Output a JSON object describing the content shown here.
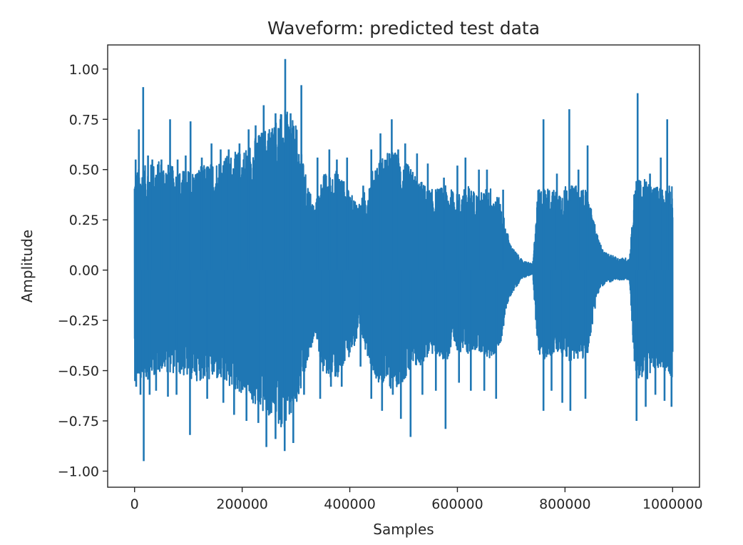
{
  "chart_data": {
    "type": "line",
    "title": "Waveform: predicted test data",
    "xlabel": "Samples",
    "ylabel": "Amplitude",
    "xlim": [
      -50000,
      1050000
    ],
    "ylim": [
      -1.08,
      1.12
    ],
    "xticks": [
      0,
      200000,
      400000,
      600000,
      800000,
      1000000
    ],
    "xtick_labels": [
      "0",
      "200000",
      "400000",
      "600000",
      "800000",
      "1000000"
    ],
    "yticks": [
      1.0,
      0.75,
      0.5,
      0.25,
      0.0,
      -0.25,
      -0.5,
      -0.75,
      -1.0
    ],
    "ytick_labels": [
      "1.00",
      "0.75",
      "0.50",
      "0.25",
      "0.00",
      "−0.25",
      "−0.50",
      "−0.75",
      "−1.00"
    ],
    "grid": false,
    "series": [
      {
        "color": "#1f77b4",
        "envelope": {
          "x": [
            0,
            20000,
            50000,
            80000,
            110000,
            150000,
            200000,
            230000,
            260000,
            280000,
            300000,
            320000,
            335000,
            350000,
            380000,
            400000,
            420000,
            450000,
            480000,
            500000,
            530000,
            550000,
            580000,
            600000,
            620000,
            640000,
            660000,
            680000,
            690000,
            700000,
            720000,
            740000,
            750000,
            760000,
            780000,
            800000,
            820000,
            840000,
            860000,
            870000,
            880000,
            900000,
            920000,
            930000,
            950000,
            970000,
            990000,
            1000000
          ],
          "upper": [
            0.5,
            0.52,
            0.55,
            0.5,
            0.5,
            0.55,
            0.6,
            0.68,
            0.75,
            0.8,
            0.72,
            0.45,
            0.32,
            0.48,
            0.5,
            0.38,
            0.34,
            0.55,
            0.6,
            0.55,
            0.45,
            0.4,
            0.42,
            0.38,
            0.42,
            0.38,
            0.42,
            0.35,
            0.22,
            0.12,
            0.05,
            0.03,
            0.4,
            0.42,
            0.4,
            0.42,
            0.42,
            0.4,
            0.18,
            0.1,
            0.08,
            0.06,
            0.06,
            0.45,
            0.45,
            0.42,
            0.42,
            0.42
          ],
          "lower": [
            -0.55,
            -0.55,
            -0.5,
            -0.52,
            -0.55,
            -0.55,
            -0.62,
            -0.7,
            -0.75,
            -0.8,
            -0.7,
            -0.5,
            -0.3,
            -0.52,
            -0.55,
            -0.42,
            -0.33,
            -0.55,
            -0.6,
            -0.55,
            -0.48,
            -0.42,
            -0.45,
            -0.4,
            -0.42,
            -0.4,
            -0.45,
            -0.38,
            -0.2,
            -0.12,
            -0.04,
            -0.02,
            -0.45,
            -0.45,
            -0.42,
            -0.45,
            -0.45,
            -0.45,
            -0.12,
            -0.08,
            -0.06,
            -0.05,
            -0.05,
            -0.55,
            -0.55,
            -0.5,
            -0.5,
            -0.55
          ]
        },
        "peaks": [
          {
            "x": 2000,
            "y": 0.55
          },
          {
            "x": 8000,
            "y": 0.7
          },
          {
            "x": 16000,
            "y": 0.91
          },
          {
            "x": 25000,
            "y": 0.57
          },
          {
            "x": 33000,
            "y": 0.55
          },
          {
            "x": 50000,
            "y": 0.55
          },
          {
            "x": 66000,
            "y": 0.75
          },
          {
            "x": 80000,
            "y": 0.55
          },
          {
            "x": 95000,
            "y": 0.57
          },
          {
            "x": 104000,
            "y": 0.74
          },
          {
            "x": 125000,
            "y": 0.56
          },
          {
            "x": 143000,
            "y": 0.63
          },
          {
            "x": 160000,
            "y": 0.6
          },
          {
            "x": 175000,
            "y": 0.6
          },
          {
            "x": 195000,
            "y": 0.63
          },
          {
            "x": 212000,
            "y": 0.7
          },
          {
            "x": 225000,
            "y": 0.72
          },
          {
            "x": 240000,
            "y": 0.82
          },
          {
            "x": 262000,
            "y": 0.78
          },
          {
            "x": 280000,
            "y": 1.05
          },
          {
            "x": 290000,
            "y": 0.78
          },
          {
            "x": 310000,
            "y": 0.92
          },
          {
            "x": 340000,
            "y": 0.56
          },
          {
            "x": 362000,
            "y": 0.6
          },
          {
            "x": 376000,
            "y": 0.55
          },
          {
            "x": 395000,
            "y": 0.56
          },
          {
            "x": 425000,
            "y": 0.42
          },
          {
            "x": 440000,
            "y": 0.6
          },
          {
            "x": 457000,
            "y": 0.68
          },
          {
            "x": 478000,
            "y": 0.75
          },
          {
            "x": 490000,
            "y": 0.6
          },
          {
            "x": 503000,
            "y": 0.63
          },
          {
            "x": 525000,
            "y": 0.58
          },
          {
            "x": 545000,
            "y": 0.53
          },
          {
            "x": 575000,
            "y": 0.46
          },
          {
            "x": 600000,
            "y": 0.52
          },
          {
            "x": 615000,
            "y": 0.56
          },
          {
            "x": 640000,
            "y": 0.5
          },
          {
            "x": 655000,
            "y": 0.5
          },
          {
            "x": 685000,
            "y": 0.4
          },
          {
            "x": 760000,
            "y": 0.75
          },
          {
            "x": 785000,
            "y": 0.48
          },
          {
            "x": 808000,
            "y": 0.8
          },
          {
            "x": 825000,
            "y": 0.5
          },
          {
            "x": 842000,
            "y": 0.62
          },
          {
            "x": 935000,
            "y": 0.88
          },
          {
            "x": 958000,
            "y": 0.48
          },
          {
            "x": 978000,
            "y": 0.56
          },
          {
            "x": 990000,
            "y": 0.75
          }
        ],
        "troughs": [
          {
            "x": 3000,
            "y": -0.58
          },
          {
            "x": 11000,
            "y": -0.62
          },
          {
            "x": 17000,
            "y": -0.95
          },
          {
            "x": 28000,
            "y": -0.62
          },
          {
            "x": 40000,
            "y": -0.6
          },
          {
            "x": 62000,
            "y": -0.63
          },
          {
            "x": 78000,
            "y": -0.62
          },
          {
            "x": 103000,
            "y": -0.82
          },
          {
            "x": 135000,
            "y": -0.64
          },
          {
            "x": 165000,
            "y": -0.66
          },
          {
            "x": 185000,
            "y": -0.72
          },
          {
            "x": 208000,
            "y": -0.75
          },
          {
            "x": 230000,
            "y": -0.76
          },
          {
            "x": 245000,
            "y": -0.88
          },
          {
            "x": 262000,
            "y": -0.84
          },
          {
            "x": 279000,
            "y": -0.9
          },
          {
            "x": 295000,
            "y": -0.86
          },
          {
            "x": 315000,
            "y": -0.62
          },
          {
            "x": 345000,
            "y": -0.64
          },
          {
            "x": 365000,
            "y": -0.58
          },
          {
            "x": 385000,
            "y": -0.58
          },
          {
            "x": 420000,
            "y": -0.48
          },
          {
            "x": 440000,
            "y": -0.64
          },
          {
            "x": 460000,
            "y": -0.7
          },
          {
            "x": 480000,
            "y": -0.62
          },
          {
            "x": 495000,
            "y": -0.74
          },
          {
            "x": 513000,
            "y": -0.83
          },
          {
            "x": 535000,
            "y": -0.62
          },
          {
            "x": 560000,
            "y": -0.6
          },
          {
            "x": 578000,
            "y": -0.79
          },
          {
            "x": 603000,
            "y": -0.56
          },
          {
            "x": 625000,
            "y": -0.6
          },
          {
            "x": 650000,
            "y": -0.6
          },
          {
            "x": 672000,
            "y": -0.64
          },
          {
            "x": 760000,
            "y": -0.7
          },
          {
            "x": 775000,
            "y": -0.6
          },
          {
            "x": 795000,
            "y": -0.66
          },
          {
            "x": 810000,
            "y": -0.7
          },
          {
            "x": 838000,
            "y": -0.64
          },
          {
            "x": 933000,
            "y": -0.75
          },
          {
            "x": 950000,
            "y": -0.68
          },
          {
            "x": 968000,
            "y": -0.62
          },
          {
            "x": 985000,
            "y": -0.65
          },
          {
            "x": 998000,
            "y": -0.68
          }
        ]
      }
    ]
  }
}
